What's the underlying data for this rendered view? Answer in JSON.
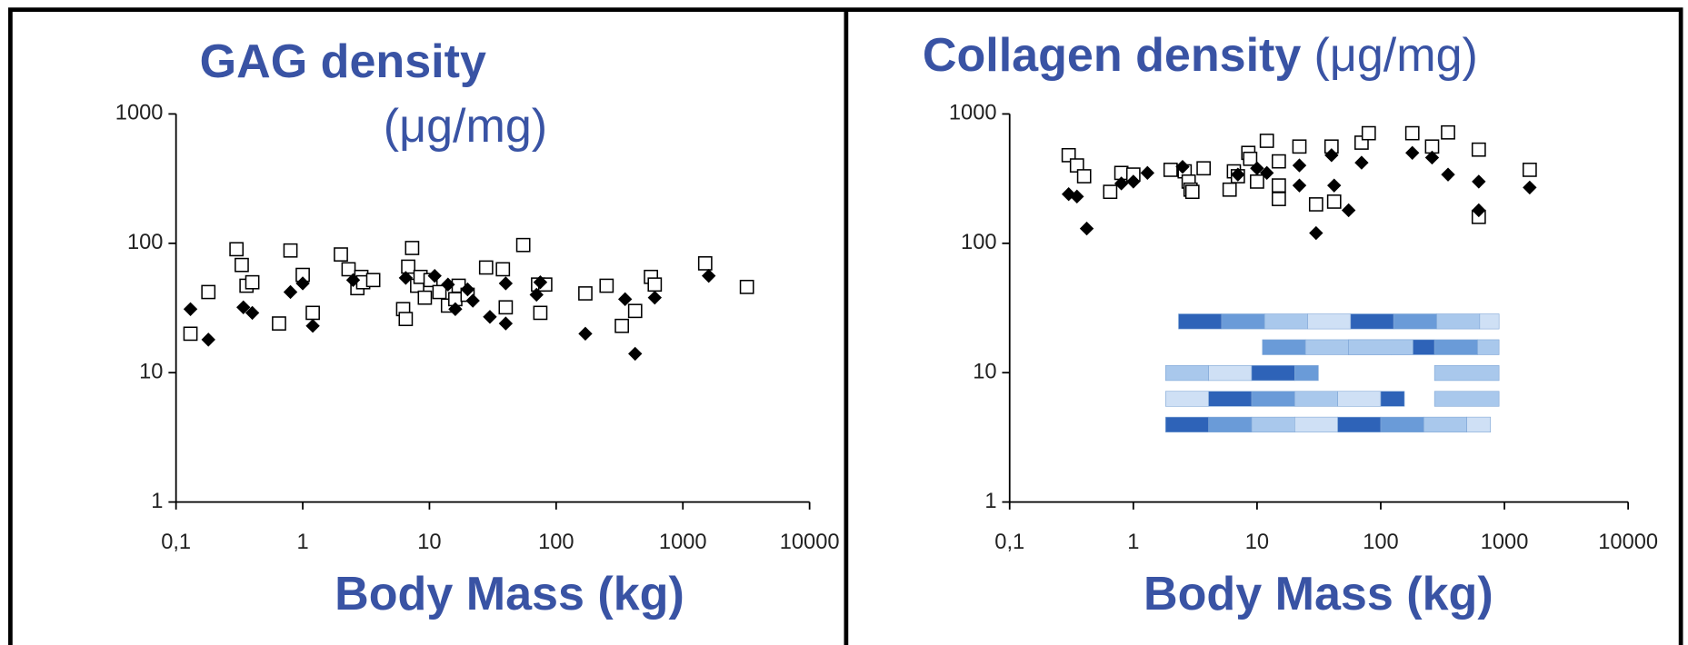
{
  "chart_data": [
    {
      "type": "scatter",
      "title": "GAG density",
      "units": "(μg/mg)",
      "xlabel": "Body Mass (kg)",
      "xscale": "log",
      "yscale": "log",
      "xlim": [
        0.1,
        10000
      ],
      "ylim": [
        1,
        1000
      ],
      "xticks": [
        {
          "value": 0.1,
          "label": "0,1"
        },
        1,
        10,
        100,
        1000,
        10000
      ],
      "yticks": [
        1,
        10,
        100,
        1000
      ],
      "series": [
        {
          "marker": "square-open",
          "color": "#000000",
          "x": [
            0.13,
            0.18,
            0.3,
            0.33,
            0.36,
            0.4,
            0.65,
            0.8,
            1.0,
            1.2,
            2.0,
            2.3,
            2.7,
            2.9,
            3.0,
            3.6,
            6.2,
            6.5,
            6.8,
            7.3,
            8.0,
            8.5,
            9.2,
            10.2,
            12,
            14,
            16,
            17,
            20,
            28,
            38,
            40,
            55,
            72,
            75,
            82,
            170,
            250,
            330,
            420,
            560,
            600,
            1500,
            3200
          ],
          "values": [
            20,
            42,
            90,
            68,
            47,
            50,
            24,
            88,
            57,
            29,
            82,
            63,
            45,
            55,
            50,
            52,
            31,
            26,
            66,
            92,
            47,
            55,
            38,
            52,
            42,
            33,
            37,
            47,
            40,
            65,
            63,
            32,
            97,
            48,
            29,
            48,
            41,
            47,
            23,
            30,
            55,
            48,
            70,
            46
          ]
        },
        {
          "marker": "diamond",
          "color": "#000000",
          "x": [
            0.13,
            0.18,
            0.34,
            0.4,
            0.8,
            1.0,
            1.2,
            2.5,
            6.5,
            11,
            14,
            16,
            20,
            22,
            30,
            40,
            40,
            70,
            75,
            170,
            350,
            420,
            600,
            1600
          ],
          "values": [
            31,
            18,
            32,
            29,
            42,
            49,
            23,
            52,
            54,
            56,
            48,
            31,
            44,
            36,
            27,
            24,
            49,
            40,
            50,
            20,
            37,
            14,
            38,
            56
          ]
        }
      ]
    },
    {
      "type": "scatter",
      "title": "Collagen density",
      "units": "(μg/mg)",
      "xlabel": "Body Mass (kg)",
      "xscale": "log",
      "yscale": "log",
      "xlim": [
        0.1,
        10000
      ],
      "ylim": [
        1,
        1000
      ],
      "xticks": [
        {
          "value": 0.1,
          "label": "0,1"
        },
        1,
        10,
        100,
        1000,
        10000
      ],
      "yticks": [
        1,
        10,
        100,
        1000
      ],
      "series": [
        {
          "marker": "square-open",
          "color": "#000000",
          "x": [
            0.3,
            0.35,
            0.4,
            0.65,
            0.8,
            1.0,
            2.0,
            2.6,
            2.8,
            2.9,
            3.0,
            3.7,
            6,
            6.5,
            7,
            8.5,
            8.8,
            10,
            12,
            15,
            15,
            15,
            22,
            30,
            40,
            42,
            70,
            80,
            180,
            260,
            350,
            620,
            620,
            1600
          ],
          "values": [
            480,
            400,
            330,
            250,
            350,
            340,
            370,
            360,
            300,
            260,
            250,
            380,
            260,
            360,
            330,
            500,
            450,
            300,
            620,
            280,
            220,
            430,
            560,
            200,
            560,
            210,
            600,
            710,
            710,
            560,
            720,
            530,
            160,
            370
          ]
        },
        {
          "marker": "diamond",
          "color": "#000000",
          "x": [
            0.3,
            0.35,
            0.42,
            0.8,
            1.0,
            1.3,
            2.5,
            7,
            10,
            12,
            22,
            22,
            30,
            40,
            42,
            55,
            70,
            180,
            260,
            350,
            620,
            620,
            1600
          ],
          "values": [
            240,
            230,
            130,
            290,
            300,
            350,
            390,
            340,
            380,
            350,
            400,
            280,
            120,
            480,
            280,
            180,
            420,
            500,
            460,
            340,
            300,
            180,
            270
          ]
        }
      ]
    }
  ]
}
